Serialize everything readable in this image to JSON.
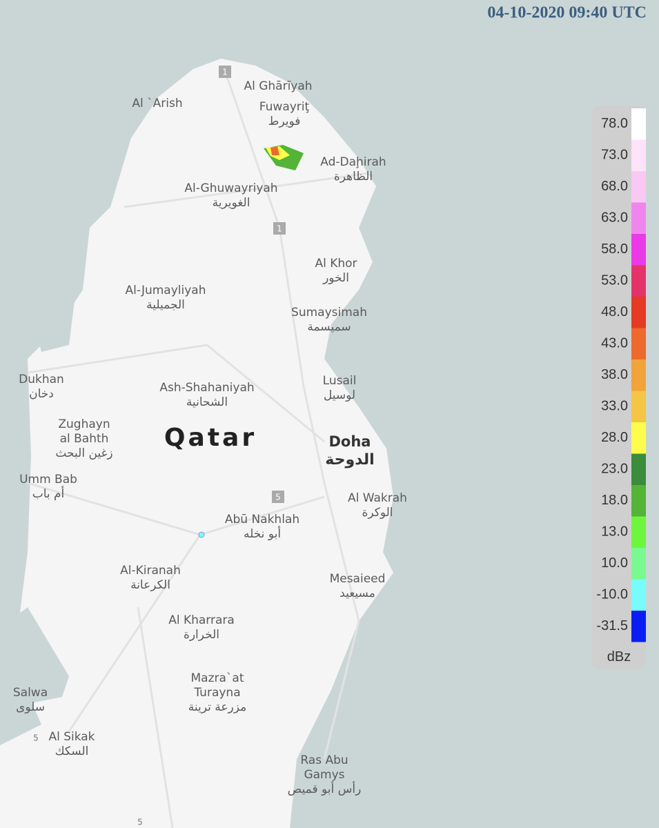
{
  "header": {
    "timestamp": "04-10-2020 09:40 UTC"
  },
  "country": "Qatar",
  "capital": {
    "lines": [
      "Doha",
      "الدوحة"
    ]
  },
  "places": [
    {
      "lines": [
        "Al Ghārīyah"
      ]
    },
    {
      "lines": [
        "Al `Arish"
      ]
    },
    {
      "lines": [
        "Fuwayriţ",
        "فويرط"
      ]
    },
    {
      "lines": [
        "Ad-Daḩirah",
        "الظاهرة"
      ]
    },
    {
      "lines": [
        "Al-Ghuwayriyah",
        "الغويرية"
      ]
    },
    {
      "lines": [
        "Al Khor",
        "الخور"
      ]
    },
    {
      "lines": [
        "Al-Jumayliyah",
        "الجميلية"
      ]
    },
    {
      "lines": [
        "Sumaysimah",
        "سميسمة"
      ]
    },
    {
      "lines": [
        "Dukhan",
        "دخان"
      ]
    },
    {
      "lines": [
        "Ash-Shahaniyah",
        "الشحانية"
      ]
    },
    {
      "lines": [
        "Lusail",
        "لوسيل"
      ]
    },
    {
      "lines": [
        "Zughayn",
        "al Bahth",
        "زغين البحث"
      ]
    },
    {
      "lines": [
        "Umm Bab",
        "أم باب"
      ]
    },
    {
      "lines": [
        "Abū Nakhlah",
        "أبو نخله"
      ]
    },
    {
      "lines": [
        "Al Wakrah",
        "الوكرة"
      ]
    },
    {
      "lines": [
        "Al-Kiranah",
        "الكرعانة"
      ]
    },
    {
      "lines": [
        "Mesaieed",
        "مسيعيد"
      ]
    },
    {
      "lines": [
        "Al Kharrara",
        "الخرارة"
      ]
    },
    {
      "lines": [
        "Mazra`at",
        "Turayna",
        "مزرعة ترينة"
      ]
    },
    {
      "lines": [
        "Salwa",
        "سلوى"
      ]
    },
    {
      "lines": [
        "Al Sikak",
        "السكك"
      ]
    },
    {
      "lines": [
        "Ras Abu",
        "Gamys",
        "رأس أبو قميص"
      ]
    }
  ],
  "road_shields": [
    "1",
    "1",
    "5"
  ],
  "road_numbers": [
    "5",
    "5"
  ],
  "legend": {
    "unit": "dBz",
    "items": [
      {
        "label": "78.0",
        "color": "#ffffff"
      },
      {
        "label": "73.0",
        "color": "#fde3f7"
      },
      {
        "label": "68.0",
        "color": "#f9c8f3"
      },
      {
        "label": "63.0",
        "color": "#ee86ee"
      },
      {
        "label": "58.0",
        "color": "#ea3ae8"
      },
      {
        "label": "53.0",
        "color": "#e4336a"
      },
      {
        "label": "48.0",
        "color": "#e53a23"
      },
      {
        "label": "43.0",
        "color": "#ec6a2b"
      },
      {
        "label": "38.0",
        "color": "#f2a33a"
      },
      {
        "label": "33.0",
        "color": "#f5c544"
      },
      {
        "label": "28.0",
        "color": "#fefd4c"
      },
      {
        "label": "23.0",
        "color": "#3b8c3c"
      },
      {
        "label": "18.0",
        "color": "#53b437"
      },
      {
        "label": "13.0",
        "color": "#6ef63e"
      },
      {
        "label": "10.0",
        "color": "#79f98f"
      },
      {
        "label": "-10.0",
        "color": "#77fbfc"
      },
      {
        "label": "-31.5",
        "color": "#0a1ef4"
      }
    ]
  }
}
